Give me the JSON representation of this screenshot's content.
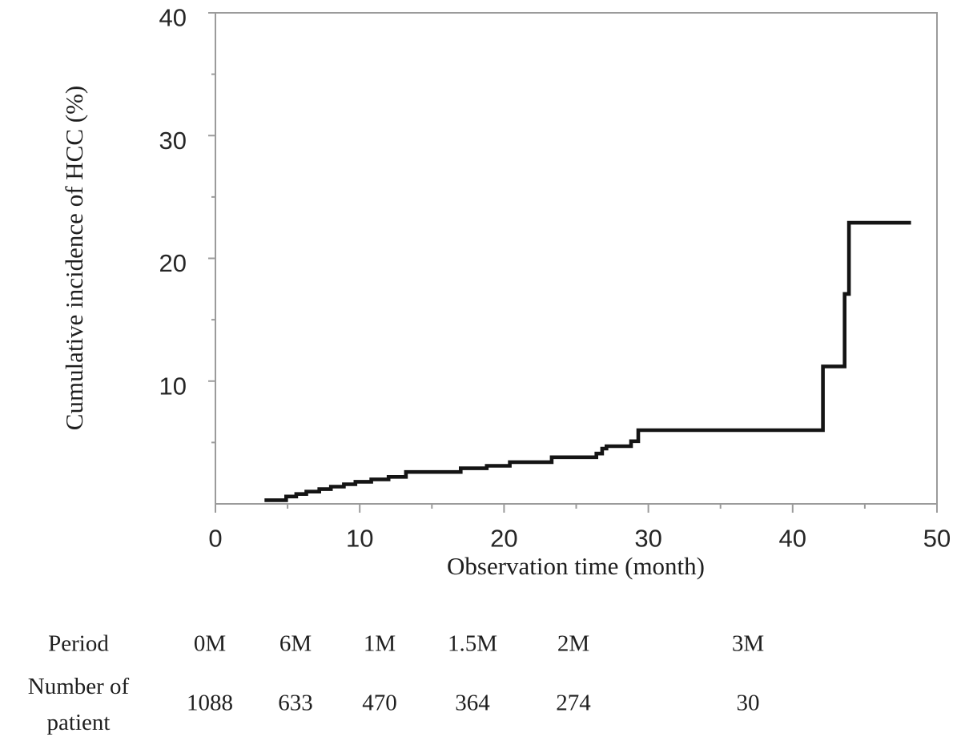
{
  "chart_data": {
    "type": "line",
    "line_style": "step",
    "title": "",
    "xlabel": "Observation time (month)",
    "ylabel": "Cumulative incidence of HCC (%)",
    "xlim": [
      0,
      50
    ],
    "ylim": [
      0,
      40
    ],
    "x_major_ticks": [
      0,
      10,
      20,
      30,
      40,
      50
    ],
    "x_minor_ticks": [
      5,
      15,
      25,
      35,
      45
    ],
    "y_major_ticks": [
      10,
      20,
      30,
      40
    ],
    "y_minor_ticks": [
      5,
      15,
      25,
      35
    ],
    "grid": false,
    "legend": "none",
    "curve_color": "#141414",
    "axis_color": "#9b9b9b",
    "series": [
      {
        "name": "Cumulative incidence of HCC",
        "step_points": [
          [
            3.4,
            0.3
          ],
          [
            4.9,
            0.6
          ],
          [
            5.6,
            0.8
          ],
          [
            6.3,
            1.0
          ],
          [
            7.2,
            1.2
          ],
          [
            8.0,
            1.4
          ],
          [
            8.9,
            1.6
          ],
          [
            9.7,
            1.8
          ],
          [
            10.8,
            2.0
          ],
          [
            12.0,
            2.2
          ],
          [
            13.2,
            2.6
          ],
          [
            17.0,
            2.9
          ],
          [
            18.8,
            3.1
          ],
          [
            20.4,
            3.4
          ],
          [
            23.3,
            3.8
          ],
          [
            26.4,
            4.1
          ],
          [
            26.8,
            4.5
          ],
          [
            27.1,
            4.7
          ],
          [
            28.8,
            5.1
          ],
          [
            29.3,
            6.0
          ],
          [
            42.1,
            11.2
          ],
          [
            43.6,
            17.1
          ],
          [
            43.9,
            22.9
          ]
        ],
        "end_x": 48.2
      }
    ],
    "risk_table": {
      "row1_label": "Period",
      "row2_label": "Number of\npatient",
      "periods": [
        "0M",
        "6M",
        "1M",
        "1.5M",
        "2M",
        "3M"
      ],
      "counts": [
        "1088",
        "633",
        "470",
        "364",
        "274",
        "30"
      ]
    }
  }
}
